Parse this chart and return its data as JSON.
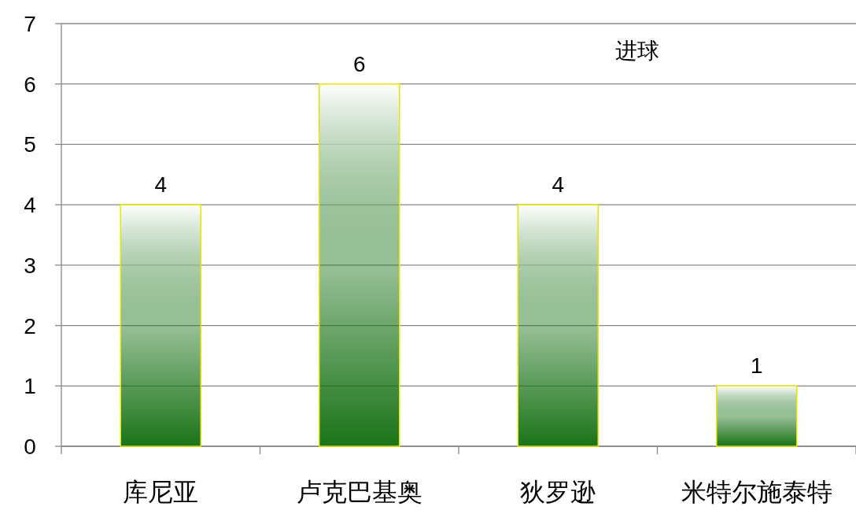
{
  "chart_data": {
    "type": "bar",
    "title": "进球",
    "categories": [
      "库尼亚",
      "卢克巴基奥",
      "狄罗逊",
      "米特尔施泰特"
    ],
    "values": [
      4,
      6,
      4,
      1
    ],
    "color": "#1a7318",
    "ylim": [
      0,
      7
    ],
    "yticks": [
      0,
      1,
      2,
      3,
      4,
      5,
      6,
      7
    ],
    "grid": "y",
    "data_labels": true
  }
}
